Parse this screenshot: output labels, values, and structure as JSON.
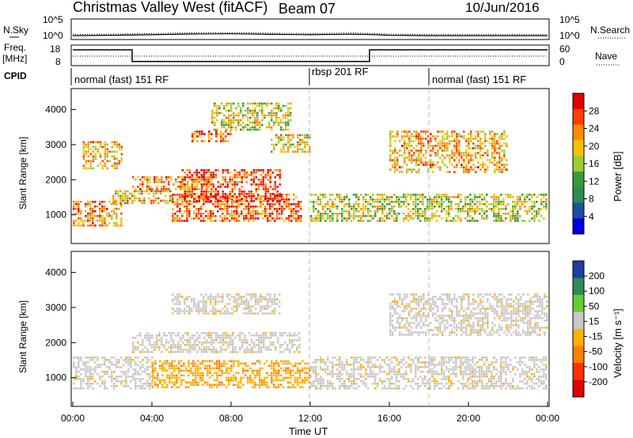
{
  "header": {
    "station": "Christmas Valley West (fitACF)",
    "beam": "Beam 07",
    "date": "10/Jun/2016"
  },
  "noise_panel": {
    "left_label": "N.Sky",
    "left_ticks": [
      "10^5",
      "10^0"
    ],
    "right_ticks": [
      "10^5",
      "10^0"
    ],
    "right_label": "N.Search"
  },
  "freq_panel": {
    "left_label_line1": "Freq.",
    "left_label_line2": "[MHz]",
    "left_ticks": [
      "18",
      "8"
    ],
    "right_ticks": [
      "60",
      "0"
    ],
    "right_label": "Nave"
  },
  "cpid": {
    "label": "CPID",
    "segments": [
      {
        "label": "normal (fast) 151 RF"
      },
      {
        "label": "rbsp 201 RF"
      },
      {
        "label": "normal (fast) 151 RF"
      }
    ]
  },
  "power_panel": {
    "ylabel": "Slant Range [km]",
    "yticks": [
      "4000",
      "3000",
      "2000",
      "1000"
    ],
    "colorbar_label": "Power [dB]",
    "colorbar_ticks": [
      "28",
      "24",
      "20",
      "16",
      "12",
      "8",
      "4"
    ],
    "colors": [
      "#e00000",
      "#ff4000",
      "#ff8c00",
      "#ffc000",
      "#9acd32",
      "#3a9a3a",
      "#2e8b57",
      "#1f4fa0",
      "#0000e0"
    ]
  },
  "velocity_panel": {
    "ylabel": "Slant Range [km]",
    "yticks": [
      "4000",
      "3000",
      "2000",
      "1000"
    ],
    "colorbar_label": "Velocity [m s⁻¹]",
    "colorbar_ticks": [
      "200",
      "100",
      "50",
      "15",
      "-15",
      "-50",
      "-100",
      "-200"
    ],
    "colors": [
      "#1f3fa0",
      "#2e8b57",
      "#66cc33",
      "#c8c8c8",
      "#ffb000",
      "#ff8000",
      "#ff3000",
      "#e00000"
    ]
  },
  "xaxis": {
    "label": "Time UT",
    "ticks": [
      "00:00",
      "04:00",
      "08:00",
      "12:00",
      "16:00",
      "20:00",
      "00:00"
    ]
  },
  "chart_data": [
    {
      "type": "line",
      "title": "",
      "xlabel": "",
      "ylabel": "N.Sky",
      "x_range_hours": [
        0,
        24
      ],
      "ylim": [
        1,
        100000
      ],
      "yscale": "log",
      "series": [
        {
          "x": [
            0,
            2,
            4,
            6,
            8,
            10,
            12,
            14,
            15,
            16,
            18,
            20,
            22,
            24
          ],
          "values": [
            3,
            4,
            6,
            10,
            12,
            8,
            6,
            9,
            7,
            4,
            3,
            3,
            3,
            3
          ]
        }
      ]
    },
    {
      "type": "line",
      "title": "",
      "xlabel": "",
      "ylabel": "Freq. [MHz]",
      "x_range_hours": [
        0,
        24
      ],
      "ylim": [
        8,
        18
      ],
      "series": [
        {
          "name": "Freq.",
          "x": [
            0,
            3,
            3,
            15,
            15,
            24
          ],
          "values": [
            18,
            18,
            9.3,
            9.3,
            18,
            18
          ]
        }
      ]
    },
    {
      "type": "heatmap",
      "title": "",
      "xlabel": "Time UT",
      "ylabel": "Slant Range [km]",
      "x_range_hours": [
        0,
        24
      ],
      "ylim": [
        180,
        4600
      ],
      "colorbar": {
        "label": "Power [dB]",
        "range": [
          0,
          30
        ],
        "ticks": [
          4,
          8,
          12,
          16,
          20,
          24,
          28
        ]
      },
      "regions": [
        {
          "t": [
            0,
            2.5
          ],
          "r": [
            700,
            1400
          ],
          "value": 22
        },
        {
          "t": [
            0.5,
            2.5
          ],
          "r": [
            2300,
            3100
          ],
          "value": 20
        },
        {
          "t": [
            2,
            5
          ],
          "r": [
            1300,
            1700
          ],
          "value": 18
        },
        {
          "t": [
            3,
            7
          ],
          "r": [
            1700,
            2100
          ],
          "value": 22
        },
        {
          "t": [
            5,
            11.5
          ],
          "r": [
            800,
            1600
          ],
          "value": 24
        },
        {
          "t": [
            5.5,
            10.5
          ],
          "r": [
            1400,
            2300
          ],
          "value": 26
        },
        {
          "t": [
            6,
            8
          ],
          "r": [
            3100,
            3400
          ],
          "value": 24
        },
        {
          "t": [
            7,
            11
          ],
          "r": [
            3400,
            4200
          ],
          "value": 16
        },
        {
          "t": [
            10,
            12
          ],
          "r": [
            2800,
            3300
          ],
          "value": 18
        },
        {
          "t": [
            12,
            24
          ],
          "r": [
            800,
            1600
          ],
          "value": 16
        },
        {
          "t": [
            16,
            22
          ],
          "r": [
            2200,
            3400
          ],
          "value": 20
        }
      ]
    },
    {
      "type": "heatmap",
      "title": "",
      "xlabel": "Time UT",
      "ylabel": "Slant Range [km]",
      "x_range_hours": [
        0,
        24
      ],
      "ylim": [
        180,
        4600
      ],
      "colorbar": {
        "label": "Velocity [m s⁻¹]",
        "range": [
          -200,
          200
        ],
        "ticks": [
          200,
          100,
          50,
          15,
          -15,
          -50,
          -100,
          -200
        ]
      },
      "regions": [
        {
          "t": [
            0,
            4
          ],
          "r": [
            700,
            1600
          ],
          "value": 0
        },
        {
          "t": [
            3,
            11.5
          ],
          "r": [
            1700,
            2300
          ],
          "value": 0
        },
        {
          "t": [
            4,
            12
          ],
          "r": [
            700,
            1500
          ],
          "value": -40
        },
        {
          "t": [
            5,
            10.5
          ],
          "r": [
            2800,
            3400
          ],
          "value": 0
        },
        {
          "t": [
            12,
            24
          ],
          "r": [
            700,
            1600
          ],
          "value": 0
        },
        {
          "t": [
            16,
            24
          ],
          "r": [
            2200,
            3400
          ],
          "value": 0
        }
      ]
    }
  ]
}
